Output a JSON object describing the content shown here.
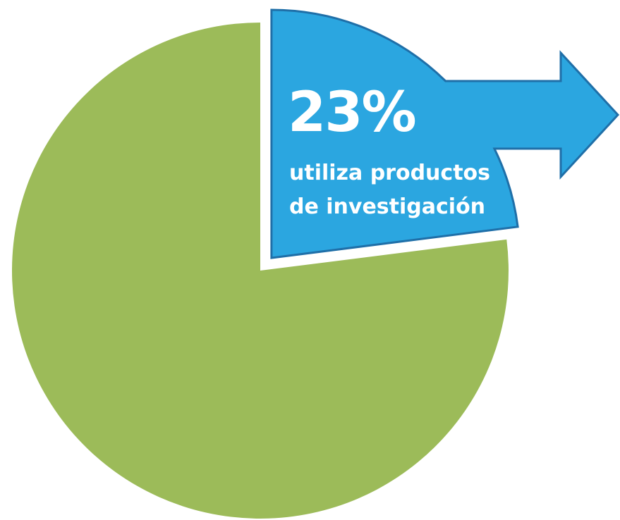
{
  "chart_data": {
    "type": "pie",
    "slices": [
      {
        "value": 23,
        "color": "#2BA6E0",
        "exploded": true,
        "arrow": true
      },
      {
        "value": 77,
        "color": "#9CBB59",
        "exploded": false
      }
    ],
    "annotation": {
      "value_text": "23%",
      "lines": [
        "utiliza productos",
        "de investigación"
      ]
    },
    "arrow_color": "#2BA6E0",
    "outline_color": "#1F6FA8"
  }
}
